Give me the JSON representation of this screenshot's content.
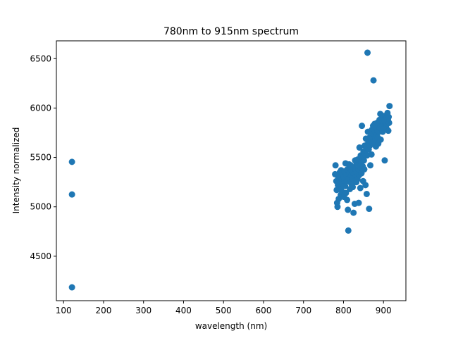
{
  "chart_data": {
    "type": "scatter",
    "title": "780nm to 915nm spectrum",
    "xlabel": "wavelength (nm)",
    "ylabel": "Intensity normalized",
    "xlim": [
      82,
      956
    ],
    "ylim": [
      4050,
      6680
    ],
    "xticks": [
      100,
      200,
      300,
      400,
      500,
      600,
      700,
      800,
      900
    ],
    "yticks": [
      4500,
      5000,
      5500,
      6000,
      6500
    ],
    "grid": false,
    "legend": "none",
    "marker_color": "#1f77b4",
    "points": [
      [
        121,
        5455
      ],
      [
        121,
        5125
      ],
      [
        121,
        4185
      ],
      [
        780,
        5420
      ],
      [
        779,
        5330
      ],
      [
        782,
        5260
      ],
      [
        783,
        5170
      ],
      [
        784,
        5040
      ],
      [
        785,
        5000
      ],
      [
        786,
        5220
      ],
      [
        787,
        5290
      ],
      [
        788,
        5080
      ],
      [
        789,
        5310
      ],
      [
        790,
        5180
      ],
      [
        791,
        5350
      ],
      [
        792,
        5240
      ],
      [
        793,
        5120
      ],
      [
        794,
        5370
      ],
      [
        795,
        5200
      ],
      [
        796,
        5280
      ],
      [
        797,
        5150
      ],
      [
        798,
        5330
      ],
      [
        799,
        5230
      ],
      [
        800,
        5300
      ],
      [
        801,
        5100
      ],
      [
        802,
        5270
      ],
      [
        803,
        5360
      ],
      [
        804,
        5210
      ],
      [
        805,
        5440
      ],
      [
        806,
        5140
      ],
      [
        807,
        5320
      ],
      [
        808,
        5260
      ],
      [
        809,
        5070
      ],
      [
        810,
        5380
      ],
      [
        811,
        4970
      ],
      [
        812,
        4760
      ],
      [
        813,
        5290
      ],
      [
        814,
        5430
      ],
      [
        815,
        5340
      ],
      [
        816,
        5180
      ],
      [
        817,
        5250
      ],
      [
        818,
        5420
      ],
      [
        819,
        5310
      ],
      [
        820,
        5230
      ],
      [
        821,
        5360
      ],
      [
        822,
        5290
      ],
      [
        823,
        5200
      ],
      [
        824,
        5400
      ],
      [
        825,
        4940
      ],
      [
        826,
        5330
      ],
      [
        827,
        5260
      ],
      [
        828,
        5030
      ],
      [
        829,
        5470
      ],
      [
        830,
        5380
      ],
      [
        831,
        5310
      ],
      [
        832,
        5250
      ],
      [
        833,
        5440
      ],
      [
        834,
        5350
      ],
      [
        835,
        5280
      ],
      [
        836,
        5480
      ],
      [
        837,
        5380
      ],
      [
        838,
        5040
      ],
      [
        839,
        5320
      ],
      [
        840,
        5600
      ],
      [
        841,
        5410
      ],
      [
        842,
        5190
      ],
      [
        843,
        5520
      ],
      [
        844,
        5450
      ],
      [
        845,
        5340
      ],
      [
        846,
        5820
      ],
      [
        847,
        5500
      ],
      [
        848,
        5410
      ],
      [
        849,
        5260
      ],
      [
        850,
        5560
      ],
      [
        851,
        5470
      ],
      [
        852,
        5380
      ],
      [
        853,
        5620
      ],
      [
        854,
        5540
      ],
      [
        855,
        5220
      ],
      [
        856,
        5690
      ],
      [
        857,
        5600
      ],
      [
        858,
        5130
      ],
      [
        859,
        5520
      ],
      [
        860,
        6560
      ],
      [
        861,
        5760
      ],
      [
        862,
        5650
      ],
      [
        863,
        5580
      ],
      [
        864,
        4980
      ],
      [
        865,
        5700
      ],
      [
        866,
        5620
      ],
      [
        867,
        5420
      ],
      [
        868,
        5760
      ],
      [
        869,
        5680
      ],
      [
        870,
        5530
      ],
      [
        871,
        5780
      ],
      [
        872,
        5700
      ],
      [
        873,
        5640
      ],
      [
        874,
        5820
      ],
      [
        875,
        6280
      ],
      [
        876,
        5740
      ],
      [
        877,
        5660
      ],
      [
        878,
        5840
      ],
      [
        879,
        5760
      ],
      [
        880,
        5690
      ],
      [
        881,
        5610
      ],
      [
        882,
        5800
      ],
      [
        883,
        5730
      ],
      [
        884,
        5850
      ],
      [
        885,
        5770
      ],
      [
        886,
        5700
      ],
      [
        887,
        5640
      ],
      [
        888,
        5820
      ],
      [
        889,
        5760
      ],
      [
        890,
        5880
      ],
      [
        891,
        5800
      ],
      [
        892,
        5940
      ],
      [
        893,
        5680
      ],
      [
        894,
        5860
      ],
      [
        895,
        5790
      ],
      [
        896,
        5900
      ],
      [
        897,
        5830
      ],
      [
        898,
        5760
      ],
      [
        899,
        5920
      ],
      [
        900,
        5850
      ],
      [
        901,
        5790
      ],
      [
        902,
        5880
      ],
      [
        903,
        5470
      ],
      [
        904,
        5830
      ],
      [
        905,
        5920
      ],
      [
        906,
        5860
      ],
      [
        907,
        5800
      ],
      [
        908,
        5900
      ],
      [
        909,
        5840
      ],
      [
        910,
        5950
      ],
      [
        911,
        5880
      ],
      [
        912,
        5770
      ],
      [
        913,
        5910
      ],
      [
        914,
        5850
      ],
      [
        915,
        6020
      ]
    ]
  }
}
